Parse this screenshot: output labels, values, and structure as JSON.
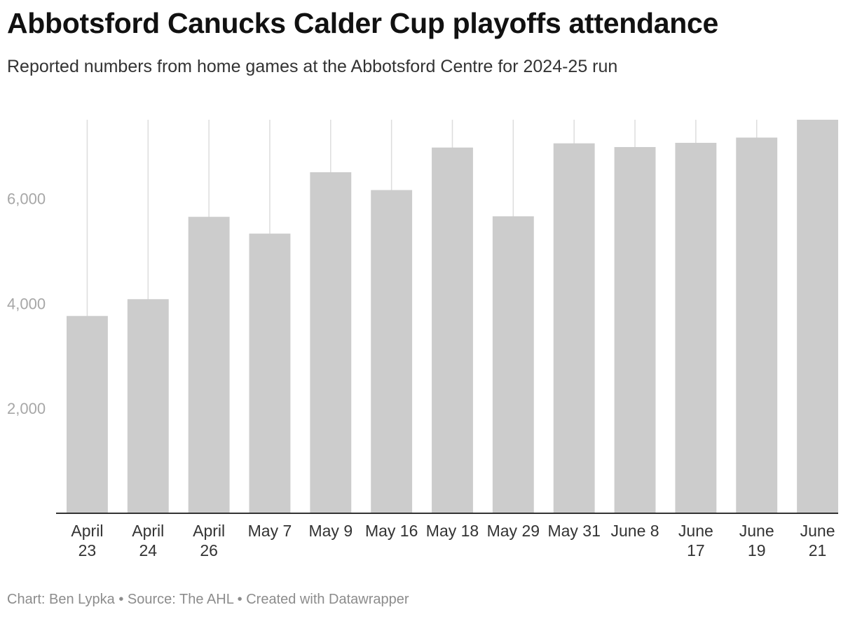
{
  "chart_data": {
    "type": "bar",
    "title": "Abbotsford Canucks Calder Cup playoffs attendance",
    "subtitle": "Reported numbers from home games at the Abbotsford Centre for 2024-25 run",
    "categories": [
      [
        "April",
        "23"
      ],
      [
        "April",
        "24"
      ],
      [
        "April",
        "26"
      ],
      [
        "May 7"
      ],
      [
        "May 9"
      ],
      [
        "May 16"
      ],
      [
        "May 18"
      ],
      [
        "May 29"
      ],
      [
        "May 31"
      ],
      [
        "June 8"
      ],
      [
        "June",
        "17"
      ],
      [
        "June",
        "19"
      ],
      [
        "June",
        "21"
      ]
    ],
    "values": [
      3760,
      4080,
      5650,
      5330,
      6500,
      6160,
      6970,
      5660,
      7050,
      6980,
      7060,
      7160,
      7500
    ],
    "yticks": [
      2000,
      4000,
      6000
    ],
    "ytick_labels": [
      "2,000",
      "4,000",
      "6,000"
    ],
    "ylim": [
      0,
      7500
    ],
    "xlabel": "",
    "ylabel": "",
    "grid": "vertical lines behind bars",
    "bar_color": "#cccccc",
    "grid_color": "#dddddd",
    "axis_color": "#333333"
  },
  "footer": "Chart: Ben Lypka • Source: The AHL • Created with Datawrapper"
}
